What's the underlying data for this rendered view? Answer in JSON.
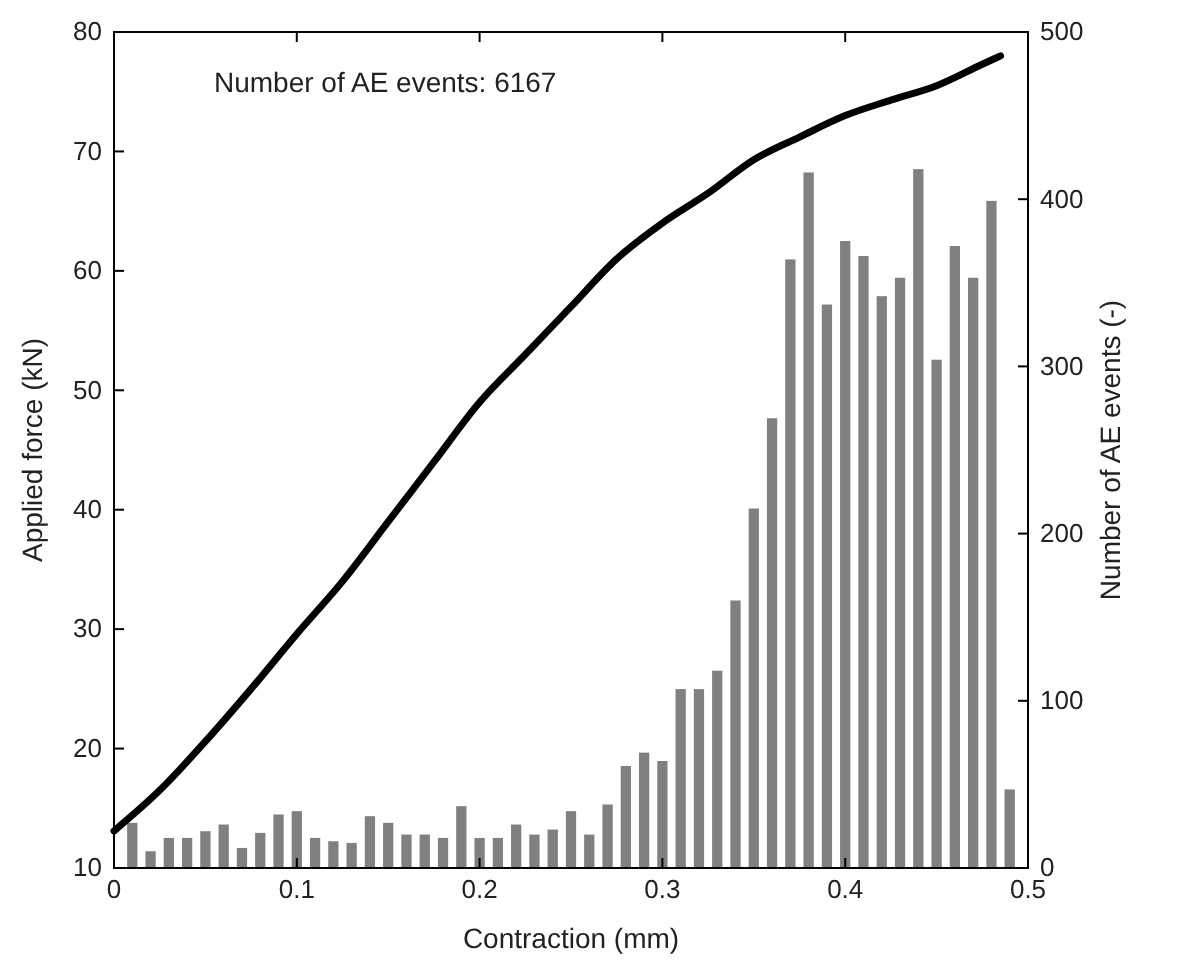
{
  "chart_data": {
    "type": "line",
    "xlabel": "Contraction (mm)",
    "ylabel": "Applied force (kN)",
    "y2label": "Number of AE events (-)",
    "annotations": [
      "Number of AE events: 6167"
    ],
    "xlim": [
      0,
      0.5
    ],
    "xticks": [
      0,
      0.1,
      0.2,
      0.3,
      0.4,
      0.5
    ],
    "ylim": [
      10,
      80
    ],
    "yticks": [
      10,
      20,
      30,
      40,
      50,
      60,
      70,
      80
    ],
    "y2lim": [
      0,
      500
    ],
    "y2ticks": [
      0,
      100,
      200,
      300,
      400,
      500
    ],
    "grid": false,
    "series": [
      {
        "type": "bar",
        "axis": "y2",
        "color": "#808080",
        "x": [
          0.01,
          0.02,
          0.03,
          0.04,
          0.05,
          0.06,
          0.07,
          0.08,
          0.09,
          0.1,
          0.11,
          0.12,
          0.13,
          0.14,
          0.15,
          0.16,
          0.17,
          0.18,
          0.19,
          0.2,
          0.21,
          0.22,
          0.23,
          0.24,
          0.25,
          0.26,
          0.27,
          0.28,
          0.29,
          0.3,
          0.31,
          0.32,
          0.33,
          0.34,
          0.35,
          0.36,
          0.37,
          0.38,
          0.39,
          0.4,
          0.41,
          0.42,
          0.43,
          0.44,
          0.45,
          0.46,
          0.47,
          0.48,
          0.49
        ],
        "values": [
          27,
          10,
          18,
          18,
          22,
          26,
          12,
          21,
          32,
          34,
          18,
          16,
          15,
          31,
          27,
          20,
          20,
          18,
          37,
          18,
          18,
          26,
          20,
          23,
          34,
          20,
          38,
          61,
          69,
          64,
          107,
          107,
          118,
          160,
          215,
          269,
          364,
          416,
          337,
          375,
          366,
          342,
          353,
          418,
          304,
          372,
          353,
          399,
          47
        ]
      },
      {
        "color": "#000000",
        "x": [
          0,
          0.025,
          0.05,
          0.075,
          0.1,
          0.125,
          0.15,
          0.175,
          0.2,
          0.225,
          0.25,
          0.275,
          0.3,
          0.325,
          0.35,
          0.375,
          0.4,
          0.425,
          0.45,
          0.475,
          0.485
        ],
        "values": [
          13.1,
          16.5,
          20.6,
          25,
          29.6,
          34,
          39,
          44,
          49,
          53,
          57,
          61,
          64,
          66.5,
          69.3,
          71.2,
          73,
          74.3,
          75.5,
          77.3,
          78
        ]
      }
    ]
  }
}
